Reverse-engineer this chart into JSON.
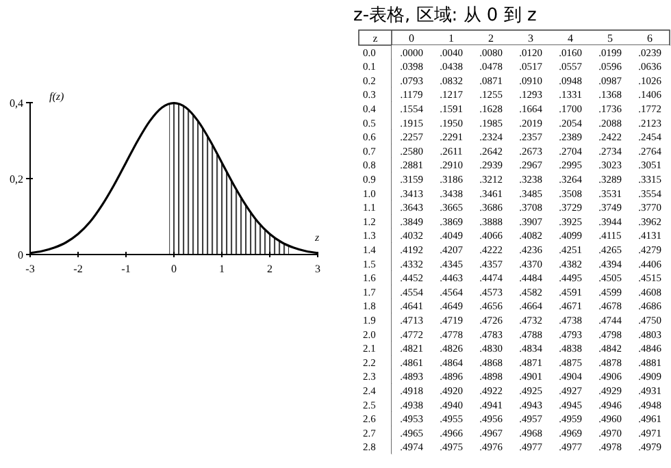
{
  "chart_data": [
    {
      "type": "line",
      "xlabel": "z",
      "ylabel": "f(z)",
      "xlim": [
        -3,
        3
      ],
      "ylim": [
        0,
        0.4
      ],
      "xticks": [
        -3,
        -2,
        -1,
        0,
        1,
        2,
        3
      ],
      "yticks": [
        {
          "value": 0,
          "label": "0"
        },
        {
          "value": 0.2,
          "label": "0,2"
        },
        {
          "value": 0.4,
          "label": "0,4"
        }
      ],
      "grid": false,
      "series": [
        {
          "type": "area",
          "color": "#000000",
          "x": [
            -0.1,
            0,
            0.25,
            0.5,
            0.75,
            1,
            1.25,
            1.5,
            1.75,
            2,
            2.25,
            2.4
          ],
          "values": [
            0.397,
            0.399,
            0.387,
            0.352,
            0.301,
            0.242,
            0.183,
            0.13,
            0.086,
            0.054,
            0.032,
            0.022
          ]
        },
        {
          "type": "line",
          "color": "#000000",
          "x": [
            -3,
            -2.75,
            -2.5,
            -2.25,
            -2,
            -1.75,
            -1.5,
            -1.25,
            -1,
            -0.75,
            -0.5,
            -0.25,
            0,
            0.25,
            0.5,
            0.75,
            1,
            1.25,
            1.5,
            1.75,
            2,
            2.25,
            2.5,
            2.75,
            3
          ],
          "values": [
            0.004,
            0.009,
            0.018,
            0.032,
            0.054,
            0.086,
            0.13,
            0.183,
            0.242,
            0.301,
            0.352,
            0.387,
            0.399,
            0.387,
            0.352,
            0.301,
            0.242,
            0.183,
            0.13,
            0.086,
            0.054,
            0.032,
            0.018,
            0.009,
            0.004
          ]
        }
      ]
    },
    {
      "type": "heatmap",
      "title": "z-表格, 区域: 从 0 到 z",
      "ylabel": "z",
      "categories": [
        "0",
        "1",
        "2",
        "3",
        "4",
        "5",
        "6"
      ],
      "y_categories": [
        "0.0",
        "0.1",
        "0.2",
        "0.3",
        "0.4",
        "0.5",
        "0.6",
        "0.7",
        "0.8",
        "0.9",
        "1.0",
        "1.1",
        "1.2",
        "1.3",
        "1.4",
        "1.5",
        "1.6",
        "1.7",
        "1.8",
        "1.9",
        "2.0",
        "2.1",
        "2.2",
        "2.3",
        "2.4",
        "2.5",
        "2.6",
        "2.7",
        "2.8"
      ],
      "cells": [
        [
          0.0,
          0.004,
          0.008,
          0.012,
          0.016,
          0.0199,
          0.0239
        ],
        [
          0.0398,
          0.0438,
          0.0478,
          0.0517,
          0.0557,
          0.0596,
          0.0636
        ],
        [
          0.0793,
          0.0832,
          0.0871,
          0.091,
          0.0948,
          0.0987,
          0.1026
        ],
        [
          0.1179,
          0.1217,
          0.1255,
          0.1293,
          0.1331,
          0.1368,
          0.1406
        ],
        [
          0.1554,
          0.1591,
          0.1628,
          0.1664,
          0.17,
          0.1736,
          0.1772
        ],
        [
          0.1915,
          0.195,
          0.1985,
          0.2019,
          0.2054,
          0.2088,
          0.2123
        ],
        [
          0.2257,
          0.2291,
          0.2324,
          0.2357,
          0.2389,
          0.2422,
          0.2454
        ],
        [
          0.258,
          0.2611,
          0.2642,
          0.2673,
          0.2704,
          0.2734,
          0.2764
        ],
        [
          0.2881,
          0.291,
          0.2939,
          0.2967,
          0.2995,
          0.3023,
          0.3051
        ],
        [
          0.3159,
          0.3186,
          0.3212,
          0.3238,
          0.3264,
          0.3289,
          0.3315
        ],
        [
          0.3413,
          0.3438,
          0.3461,
          0.3485,
          0.3508,
          0.3531,
          0.3554
        ],
        [
          0.3643,
          0.3665,
          0.3686,
          0.3708,
          0.3729,
          0.3749,
          0.377
        ],
        [
          0.3849,
          0.3869,
          0.3888,
          0.3907,
          0.3925,
          0.3944,
          0.3962
        ],
        [
          0.4032,
          0.4049,
          0.4066,
          0.4082,
          0.4099,
          0.4115,
          0.4131
        ],
        [
          0.4192,
          0.4207,
          0.4222,
          0.4236,
          0.4251,
          0.4265,
          0.4279
        ],
        [
          0.4332,
          0.4345,
          0.4357,
          0.437,
          0.4382,
          0.4394,
          0.4406
        ],
        [
          0.4452,
          0.4463,
          0.4474,
          0.4484,
          0.4495,
          0.4505,
          0.4515
        ],
        [
          0.4554,
          0.4564,
          0.4573,
          0.4582,
          0.4591,
          0.4599,
          0.4608
        ],
        [
          0.4641,
          0.4649,
          0.4656,
          0.4664,
          0.4671,
          0.4678,
          0.4686
        ],
        [
          0.4713,
          0.4719,
          0.4726,
          0.4732,
          0.4738,
          0.4744,
          0.475
        ],
        [
          0.4772,
          0.4778,
          0.4783,
          0.4788,
          0.4793,
          0.4798,
          0.4803
        ],
        [
          0.4821,
          0.4826,
          0.483,
          0.4834,
          0.4838,
          0.4842,
          0.4846
        ],
        [
          0.4861,
          0.4864,
          0.4868,
          0.4871,
          0.4875,
          0.4878,
          0.4881
        ],
        [
          0.4893,
          0.4896,
          0.4898,
          0.4901,
          0.4904,
          0.4906,
          0.4909
        ],
        [
          0.4918,
          0.492,
          0.4922,
          0.4925,
          0.4927,
          0.4929,
          0.4931
        ],
        [
          0.4938,
          0.494,
          0.4941,
          0.4943,
          0.4945,
          0.4946,
          0.4948
        ],
        [
          0.4953,
          0.4955,
          0.4956,
          0.4957,
          0.4959,
          0.496,
          0.4961
        ],
        [
          0.4965,
          0.4966,
          0.4967,
          0.4968,
          0.4969,
          0.497,
          0.4971
        ],
        [
          0.4974,
          0.4975,
          0.4976,
          0.4977,
          0.4977,
          0.4978,
          0.4979
        ]
      ],
      "cell_labels": [
        [
          ".0000",
          ".0040",
          ".0080",
          ".0120",
          ".0160",
          ".0199",
          ".0239"
        ],
        [
          ".0398",
          ".0438",
          ".0478",
          ".0517",
          ".0557",
          ".0596",
          ".0636"
        ],
        [
          ".0793",
          ".0832",
          ".0871",
          ".0910",
          ".0948",
          ".0987",
          ".1026"
        ],
        [
          ".1179",
          ".1217",
          ".1255",
          ".1293",
          ".1331",
          ".1368",
          ".1406"
        ],
        [
          ".1554",
          ".1591",
          ".1628",
          ".1664",
          ".1700",
          ".1736",
          ".1772"
        ],
        [
          ".1915",
          ".1950",
          ".1985",
          ".2019",
          ".2054",
          ".2088",
          ".2123"
        ],
        [
          ".2257",
          ".2291",
          ".2324",
          ".2357",
          ".2389",
          ".2422",
          ".2454"
        ],
        [
          ".2580",
          ".2611",
          ".2642",
          ".2673",
          ".2704",
          ".2734",
          ".2764"
        ],
        [
          ".2881",
          ".2910",
          ".2939",
          ".2967",
          ".2995",
          ".3023",
          ".3051"
        ],
        [
          ".3159",
          ".3186",
          ".3212",
          ".3238",
          ".3264",
          ".3289",
          ".3315"
        ],
        [
          ".3413",
          ".3438",
          ".3461",
          ".3485",
          ".3508",
          ".3531",
          ".3554"
        ],
        [
          ".3643",
          ".3665",
          ".3686",
          ".3708",
          ".3729",
          ".3749",
          ".3770"
        ],
        [
          ".3849",
          ".3869",
          ".3888",
          ".3907",
          ".3925",
          ".3944",
          ".3962"
        ],
        [
          ".4032",
          ".4049",
          ".4066",
          ".4082",
          ".4099",
          ".4115",
          ".4131"
        ],
        [
          ".4192",
          ".4207",
          ".4222",
          ".4236",
          ".4251",
          ".4265",
          ".4279"
        ],
        [
          ".4332",
          ".4345",
          ".4357",
          ".4370",
          ".4382",
          ".4394",
          ".4406"
        ],
        [
          ".4452",
          ".4463",
          ".4474",
          ".4484",
          ".4495",
          ".4505",
          ".4515"
        ],
        [
          ".4554",
          ".4564",
          ".4573",
          ".4582",
          ".4591",
          ".4599",
          ".4608"
        ],
        [
          ".4641",
          ".4649",
          ".4656",
          ".4664",
          ".4671",
          ".4678",
          ".4686"
        ],
        [
          ".4713",
          ".4719",
          ".4726",
          ".4732",
          ".4738",
          ".4744",
          ".4750"
        ],
        [
          ".4772",
          ".4778",
          ".4783",
          ".4788",
          ".4793",
          ".4798",
          ".4803"
        ],
        [
          ".4821",
          ".4826",
          ".4830",
          ".4834",
          ".4838",
          ".4842",
          ".4846"
        ],
        [
          ".4861",
          ".4864",
          ".4868",
          ".4871",
          ".4875",
          ".4878",
          ".4881"
        ],
        [
          ".4893",
          ".4896",
          ".4898",
          ".4901",
          ".4904",
          ".4906",
          ".4909"
        ],
        [
          ".4918",
          ".4920",
          ".4922",
          ".4925",
          ".4927",
          ".4929",
          ".4931"
        ],
        [
          ".4938",
          ".4940",
          ".4941",
          ".4943",
          ".4945",
          ".4946",
          ".4948"
        ],
        [
          ".4953",
          ".4955",
          ".4956",
          ".4957",
          ".4959",
          ".4960",
          ".4961"
        ],
        [
          ".4965",
          ".4966",
          ".4967",
          ".4968",
          ".4969",
          ".4970",
          ".4971"
        ],
        [
          ".4974",
          ".4975",
          ".4976",
          ".4977",
          ".4977",
          ".4978",
          ".4979"
        ]
      ]
    }
  ]
}
